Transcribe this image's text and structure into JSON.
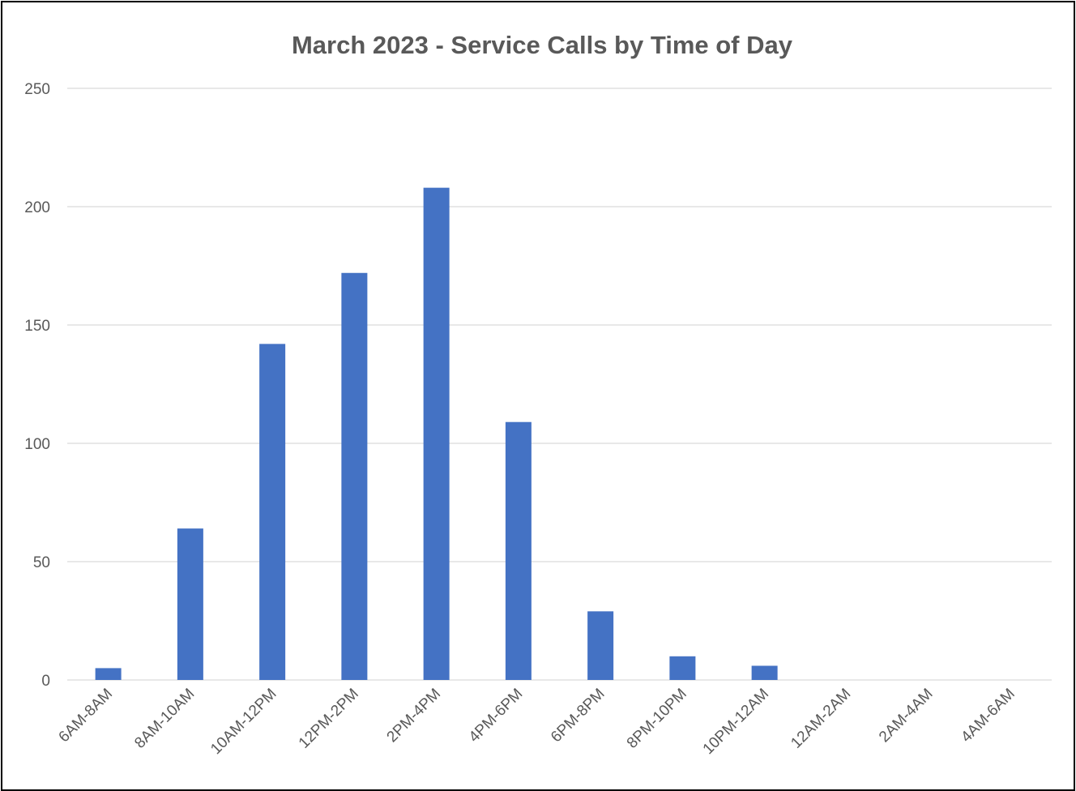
{
  "chart_data": {
    "type": "bar",
    "title": "March 2023 - Service Calls by Time of Day",
    "xlabel": "",
    "ylabel": "",
    "categories": [
      "6AM-8AM",
      "8AM-10AM",
      "10AM-12PM",
      "12PM-2PM",
      "2PM-4PM",
      "4PM-6PM",
      "6PM-8PM",
      "8PM-10PM",
      "10PM-12AM",
      "12AM-2AM",
      "2AM-4AM",
      "4AM-6AM"
    ],
    "values": [
      5,
      64,
      142,
      172,
      208,
      109,
      29,
      10,
      6,
      0,
      0,
      0
    ],
    "ylim": [
      0,
      250
    ],
    "yticks": [
      0,
      50,
      100,
      150,
      200,
      250
    ],
    "grid": true,
    "legend": "none",
    "colors": {
      "bar": "#4472C4",
      "grid": "#D9D9D9",
      "text": "#595959",
      "border": "#000000"
    }
  }
}
